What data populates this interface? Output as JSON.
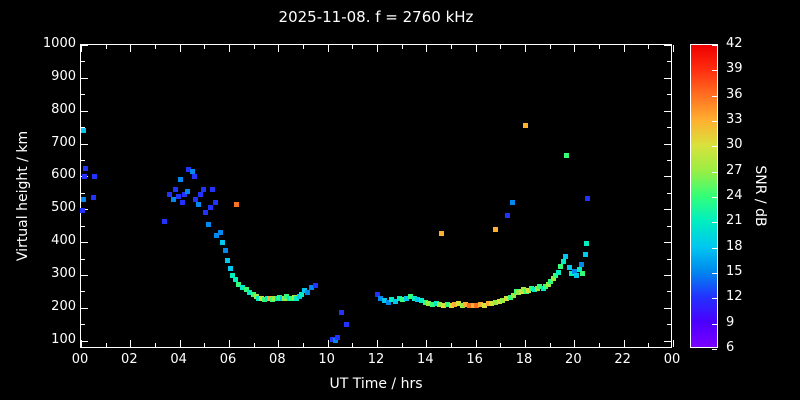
{
  "chart_data": {
    "type": "scatter",
    "title": "2025-11-08. f = 2760 kHz",
    "xlabel": "UT Time / hrs",
    "ylabel": "Virtual height / km",
    "colorbar_label": "SNR / dB",
    "xlim": [
      0,
      24
    ],
    "ylim": [
      75,
      1000
    ],
    "x_tick_values": [
      0,
      2,
      4,
      6,
      8,
      10,
      12,
      14,
      16,
      18,
      20,
      22,
      24
    ],
    "x_tick_labels": [
      "00",
      "02",
      "04",
      "06",
      "08",
      "10",
      "12",
      "14",
      "16",
      "18",
      "20",
      "22",
      "00"
    ],
    "x_minor_step": 1,
    "y_tick_values": [
      100,
      200,
      300,
      400,
      500,
      600,
      700,
      800,
      900,
      1000
    ],
    "y_minor_step": 50,
    "colorbar_ticks": [
      6,
      9,
      12,
      15,
      18,
      21,
      24,
      27,
      30,
      33,
      36,
      39,
      42
    ],
    "colorbar_range": [
      6,
      42
    ],
    "background_color": "#000000",
    "frame_color": "#ffffff",
    "colormap": [
      [
        6,
        "#7a00ff"
      ],
      [
        9,
        "#4a00ff"
      ],
      [
        12,
        "#2233ff"
      ],
      [
        15,
        "#0088ee"
      ],
      [
        18,
        "#00c8f0"
      ],
      [
        21,
        "#00eec0"
      ],
      [
        24,
        "#33ff77"
      ],
      [
        27,
        "#99ee44"
      ],
      [
        30,
        "#d8e23c"
      ],
      [
        33,
        "#ffb030"
      ],
      [
        36,
        "#ff7020"
      ],
      [
        39,
        "#ff2e10"
      ],
      [
        42,
        "#ee0000"
      ]
    ],
    "points": [
      [
        0.05,
        495,
        12
      ],
      [
        0.1,
        530,
        15
      ],
      [
        0.12,
        740,
        18
      ],
      [
        0.15,
        600,
        12
      ],
      [
        0.2,
        625,
        12
      ],
      [
        0.5,
        535,
        12
      ],
      [
        0.55,
        600,
        12
      ],
      [
        3.4,
        462,
        12
      ],
      [
        3.6,
        545,
        12
      ],
      [
        3.75,
        530,
        15
      ],
      [
        3.85,
        560,
        12
      ],
      [
        3.95,
        540,
        12
      ],
      [
        4.05,
        590,
        15
      ],
      [
        4.1,
        520,
        12
      ],
      [
        4.2,
        545,
        12
      ],
      [
        4.3,
        555,
        15
      ],
      [
        4.35,
        620,
        12
      ],
      [
        4.5,
        615,
        15
      ],
      [
        4.6,
        600,
        12
      ],
      [
        4.65,
        530,
        12
      ],
      [
        4.75,
        515,
        15
      ],
      [
        4.85,
        545,
        12
      ],
      [
        4.95,
        560,
        12
      ],
      [
        5.05,
        490,
        12
      ],
      [
        5.15,
        455,
        15
      ],
      [
        5.25,
        505,
        12
      ],
      [
        5.35,
        560,
        12
      ],
      [
        5.45,
        520,
        12
      ],
      [
        5.5,
        420,
        15
      ],
      [
        5.65,
        430,
        15
      ],
      [
        5.75,
        400,
        18
      ],
      [
        5.85,
        375,
        15
      ],
      [
        5.95,
        345,
        18
      ],
      [
        6.05,
        320,
        18
      ],
      [
        6.15,
        300,
        21
      ],
      [
        6.25,
        285,
        21
      ],
      [
        6.3,
        515,
        36
      ],
      [
        6.4,
        272,
        24
      ],
      [
        6.55,
        262,
        21
      ],
      [
        6.7,
        255,
        24
      ],
      [
        6.85,
        248,
        21
      ],
      [
        7.0,
        242,
        24
      ],
      [
        7.1,
        236,
        27
      ],
      [
        7.2,
        230,
        21
      ],
      [
        7.3,
        228,
        30
      ],
      [
        7.45,
        226,
        24
      ],
      [
        7.55,
        228,
        21
      ],
      [
        7.65,
        230,
        33
      ],
      [
        7.75,
        226,
        24
      ],
      [
        7.85,
        228,
        27
      ],
      [
        7.95,
        230,
        21
      ],
      [
        8.05,
        232,
        24
      ],
      [
        8.15,
        228,
        18
      ],
      [
        8.25,
        230,
        27
      ],
      [
        8.35,
        234,
        24
      ],
      [
        8.45,
        230,
        21
      ],
      [
        8.55,
        228,
        24
      ],
      [
        8.65,
        232,
        27
      ],
      [
        8.75,
        230,
        21
      ],
      [
        8.85,
        236,
        18
      ],
      [
        8.95,
        242,
        21
      ],
      [
        9.05,
        252,
        18
      ],
      [
        9.2,
        248,
        15
      ],
      [
        9.35,
        262,
        15
      ],
      [
        9.5,
        268,
        12
      ],
      [
        10.2,
        105,
        12
      ],
      [
        10.3,
        100,
        15
      ],
      [
        10.4,
        110,
        12
      ],
      [
        10.55,
        185,
        12
      ],
      [
        10.75,
        150,
        12
      ],
      [
        12.0,
        242,
        12
      ],
      [
        12.15,
        228,
        15
      ],
      [
        12.3,
        222,
        18
      ],
      [
        12.45,
        216,
        15
      ],
      [
        12.6,
        226,
        21
      ],
      [
        12.75,
        220,
        18
      ],
      [
        12.9,
        230,
        21
      ],
      [
        13.05,
        226,
        24
      ],
      [
        13.2,
        230,
        18
      ],
      [
        13.35,
        236,
        24
      ],
      [
        13.5,
        230,
        21
      ],
      [
        13.65,
        226,
        18
      ],
      [
        13.8,
        222,
        21
      ],
      [
        13.95,
        216,
        24
      ],
      [
        14.1,
        212,
        27
      ],
      [
        14.25,
        210,
        24
      ],
      [
        14.4,
        214,
        21
      ],
      [
        14.55,
        210,
        27
      ],
      [
        14.6,
        425,
        33
      ],
      [
        14.7,
        208,
        30
      ],
      [
        14.85,
        210,
        24
      ],
      [
        15.0,
        208,
        30
      ],
      [
        15.15,
        210,
        33
      ],
      [
        15.3,
        212,
        30
      ],
      [
        15.45,
        208,
        27
      ],
      [
        15.6,
        210,
        33
      ],
      [
        15.75,
        208,
        36
      ],
      [
        15.9,
        206,
        33
      ],
      [
        16.05,
        208,
        36
      ],
      [
        16.2,
        210,
        33
      ],
      [
        16.35,
        208,
        30
      ],
      [
        16.5,
        212,
        33
      ],
      [
        16.65,
        214,
        30
      ],
      [
        16.8,
        440,
        33
      ],
      [
        16.8,
        218,
        27
      ],
      [
        16.95,
        220,
        30
      ],
      [
        17.1,
        224,
        27
      ],
      [
        17.25,
        228,
        30
      ],
      [
        17.3,
        482,
        12
      ],
      [
        17.4,
        232,
        24
      ],
      [
        17.5,
        520,
        15
      ],
      [
        17.55,
        238,
        27
      ],
      [
        17.65,
        250,
        24
      ],
      [
        17.75,
        246,
        27
      ],
      [
        17.85,
        250,
        30
      ],
      [
        17.95,
        255,
        27
      ],
      [
        18.0,
        755,
        33
      ],
      [
        18.05,
        250,
        24
      ],
      [
        18.15,
        254,
        30
      ],
      [
        18.25,
        260,
        24
      ],
      [
        18.4,
        256,
        21
      ],
      [
        18.5,
        260,
        27
      ],
      [
        18.6,
        264,
        24
      ],
      [
        18.75,
        260,
        21
      ],
      [
        18.85,
        266,
        24
      ],
      [
        18.95,
        272,
        27
      ],
      [
        19.05,
        280,
        24
      ],
      [
        19.15,
        290,
        27
      ],
      [
        19.25,
        298,
        24
      ],
      [
        19.35,
        308,
        21
      ],
      [
        19.45,
        325,
        24
      ],
      [
        19.55,
        342,
        21
      ],
      [
        19.65,
        355,
        18
      ],
      [
        19.7,
        665,
        24
      ],
      [
        19.8,
        322,
        18
      ],
      [
        19.9,
        306,
        21
      ],
      [
        20.0,
        312,
        15
      ],
      [
        20.1,
        300,
        18
      ],
      [
        20.2,
        316,
        21
      ],
      [
        20.3,
        332,
        15
      ],
      [
        20.35,
        305,
        24
      ],
      [
        20.45,
        362,
        18
      ],
      [
        20.5,
        395,
        21
      ],
      [
        20.55,
        532,
        12
      ]
    ]
  }
}
